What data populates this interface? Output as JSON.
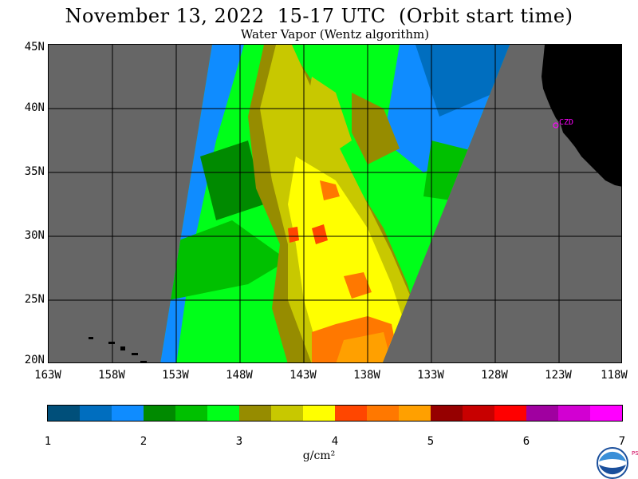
{
  "title": "November 13, 2022  15-17 UTC  (Orbit start time)",
  "subtitle": "Water Vapor (Wentz algorithm)",
  "map": {
    "lat_labels": [
      "45N",
      "40N",
      "35N",
      "30N",
      "25N",
      "20N"
    ],
    "lon_labels": [
      "163W",
      "158W",
      "153W",
      "148W",
      "143W",
      "138W",
      "133W",
      "128W",
      "123W",
      "118W"
    ],
    "lat_range": [
      20,
      45
    ],
    "lon_range": [
      -163,
      -118
    ],
    "station_label": "CZD",
    "colors": {
      "no_data": "#666666",
      "land": "#000000",
      "grid": "#000000",
      "station": "#ff00ff"
    }
  },
  "colorbar": {
    "colors": [
      "#004f7a",
      "#006ebf",
      "#0f8cff",
      "#008a00",
      "#00c000",
      "#00ff19",
      "#968c00",
      "#c8c800",
      "#ffff00",
      "#ff4600",
      "#ff7800",
      "#ffa000",
      "#960000",
      "#c80000",
      "#ff0000",
      "#a000a0",
      "#d200d2",
      "#ff00ff"
    ],
    "tick_labels": [
      "1",
      "2",
      "3",
      "4",
      "5",
      "6",
      "7"
    ],
    "units": "g/cm²"
  },
  "logo": {
    "text": "NOAA",
    "side_letters": "PSL"
  }
}
